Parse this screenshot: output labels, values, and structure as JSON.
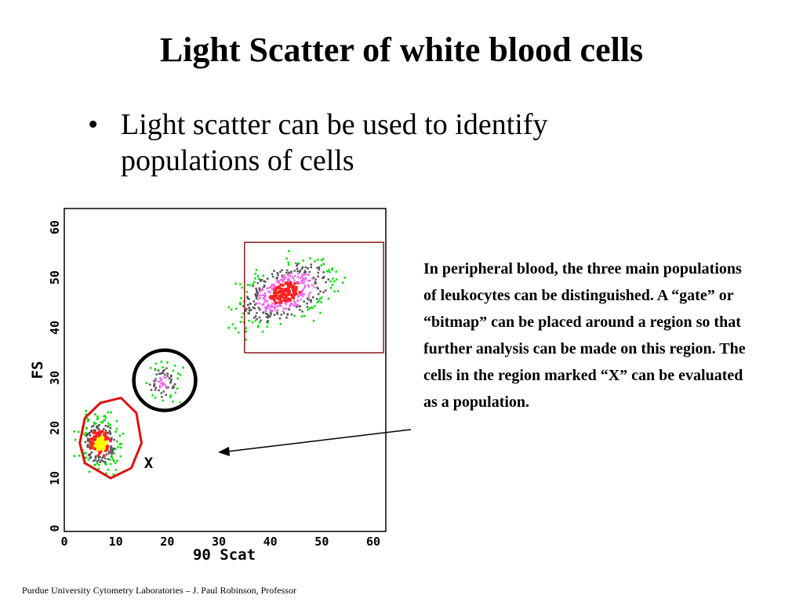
{
  "slide": {
    "title": "Light Scatter of white blood cells",
    "bullet_symbol": "•",
    "bullet_text": "Light scatter can be used to identify populations of cells",
    "description": "In peripheral blood, the three main populations of leukocytes can be distinguished. A “gate” or “bitmap” can be placed around a region so that further analysis can be made on this region. The cells in the region marked “X” can be evaluated as a population.",
    "footer": "Purdue University Cytometry Laboratories – J. Paul Robinson, Professor"
  },
  "chart_data": {
    "type": "scatter",
    "xlabel": "90 Scat",
    "ylabel": "FS",
    "xlim": [
      0,
      64
    ],
    "ylim": [
      0,
      64
    ],
    "xticks": [
      0,
      10,
      20,
      30,
      40,
      50,
      60
    ],
    "yticks": [
      0,
      10,
      20,
      30,
      40,
      50,
      60
    ],
    "grid": false,
    "populations": [
      {
        "name": "X",
        "center": [
          7,
          17
        ],
        "spread": [
          3.5,
          4.5
        ],
        "count": 260
      },
      {
        "center": [
          19,
          29
        ],
        "spread": [
          3,
          3.5
        ],
        "count": 80
      },
      {
        "center": [
          43,
          47
        ],
        "spread": [
          8,
          5
        ],
        "count": 520
      }
    ],
    "density_colors": {
      "low": "#00dd00",
      "mid": "#555555",
      "high": "#ee66ee",
      "higher": "#ff2222",
      "highest": "#ffff00"
    },
    "regions": [
      {
        "kind": "polygon",
        "color": "#dd1111",
        "points": [
          [
            4,
            13
          ],
          [
            9,
            10
          ],
          [
            13,
            12
          ],
          [
            15,
            17
          ],
          [
            14,
            23
          ],
          [
            11,
            26
          ],
          [
            7,
            25
          ],
          [
            4,
            22
          ],
          [
            3,
            17
          ]
        ]
      },
      {
        "kind": "ellipse",
        "color": "#000000",
        "center": [
          19.5,
          29.5
        ],
        "radii": [
          6,
          6
        ]
      },
      {
        "kind": "rectangle",
        "color": "#8b1a1a",
        "x": [
          35,
          62
        ],
        "y": [
          35,
          57
        ]
      }
    ],
    "annotations": [
      {
        "text": "X",
        "at": [
          15.5,
          12
        ]
      }
    ]
  }
}
